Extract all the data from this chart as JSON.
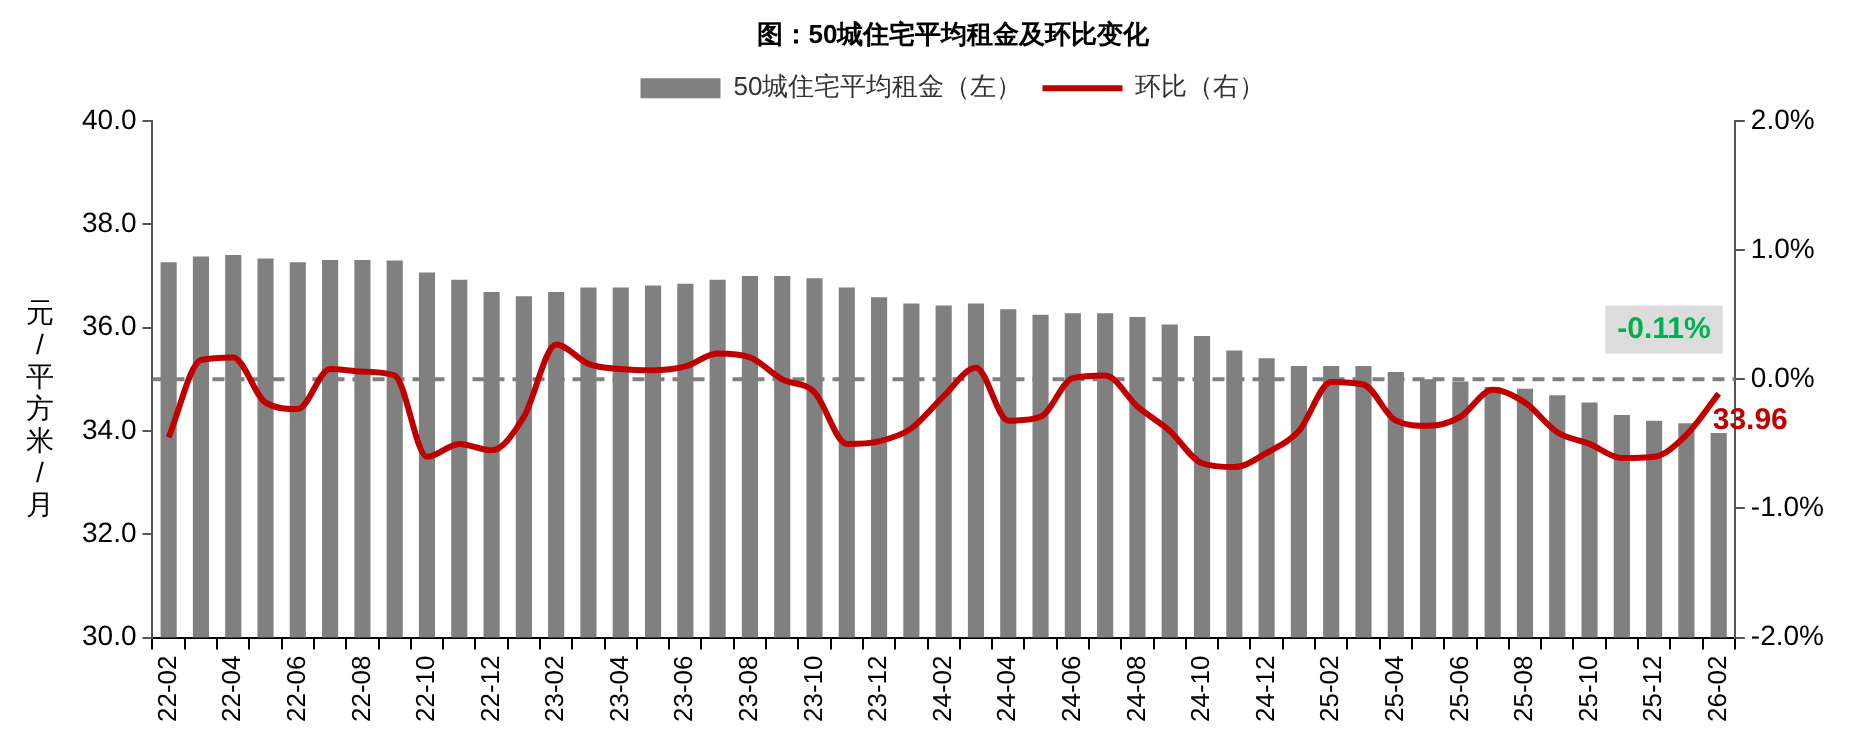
{
  "chart_data": {
    "type": "bar",
    "title": "图：50城住宅平均租金及环比变化",
    "ylabel": "元/平方米/月",
    "categories": [
      "22-02",
      null,
      "22-04",
      null,
      "22-06",
      null,
      "22-08",
      null,
      "22-10",
      null,
      "22-12",
      null,
      "23-02",
      null,
      "23-04",
      null,
      "23-06",
      null,
      "23-08",
      null,
      "23-10",
      null,
      "23-12",
      null,
      "24-02",
      null,
      "24-04",
      null,
      "24-06",
      null,
      "24-08",
      null,
      "24-10",
      null,
      "24-12",
      null,
      "25-02",
      null,
      "25-04",
      null,
      "25-06",
      null,
      "25-08",
      null,
      "25-10",
      null,
      "25-12",
      null,
      "26-02"
    ],
    "series": [
      {
        "name": "50城住宅平均租金（左）",
        "color": "#808080",
        "values": [
          37.27,
          37.38,
          37.41,
          37.34,
          37.27,
          37.31,
          37.31,
          37.3,
          37.07,
          36.93,
          36.69,
          36.61,
          36.69,
          36.78,
          36.78,
          36.82,
          36.85,
          36.93,
          37.0,
          37.0,
          36.96,
          36.78,
          36.59,
          36.47,
          36.43,
          36.47,
          36.36,
          36.25,
          36.28,
          36.28,
          36.21,
          36.06,
          35.84,
          35.56,
          35.41,
          35.26,
          35.26,
          35.26,
          35.14,
          35.0,
          34.96,
          34.85,
          34.82,
          34.69,
          34.55,
          34.31,
          34.2,
          34.15,
          33.96
        ],
        "value_labels": [
          null,
          null,
          null,
          null,
          null,
          null,
          null,
          null,
          null,
          null,
          null,
          null,
          null,
          null,
          null,
          null,
          null,
          null,
          null,
          null,
          null,
          null,
          null,
          null,
          null,
          null,
          null,
          null,
          null,
          null,
          null,
          null,
          null,
          null,
          null,
          null,
          null,
          null,
          null,
          null,
          null,
          null,
          null,
          null,
          null,
          null,
          null,
          null,
          "33.96"
        ]
      },
      {
        "name": "环比（右）",
        "type": "line",
        "axis": "y2",
        "color": "#c00000",
        "values": [
          -0.45,
          0.15,
          0.17,
          -0.18,
          -0.23,
          0.08,
          0.06,
          0.03,
          -0.6,
          -0.5,
          -0.55,
          -0.29,
          0.27,
          0.12,
          0.08,
          0.07,
          0.1,
          0.2,
          0.17,
          0.0,
          -0.1,
          -0.5,
          -0.48,
          -0.38,
          -0.13,
          0.09,
          -0.32,
          -0.29,
          0.01,
          0.03,
          -0.21,
          -0.4,
          -0.65,
          -0.68,
          -0.57,
          -0.4,
          -0.02,
          -0.04,
          -0.32,
          -0.36,
          -0.29,
          -0.08,
          -0.18,
          -0.41,
          -0.5,
          -0.61,
          -0.6,
          -0.43,
          -0.11
        ],
        "value_labels": [
          null,
          null,
          null,
          null,
          null,
          null,
          null,
          null,
          null,
          null,
          null,
          null,
          null,
          null,
          null,
          null,
          null,
          null,
          null,
          null,
          null,
          null,
          null,
          null,
          null,
          null,
          null,
          null,
          null,
          null,
          null,
          null,
          null,
          null,
          null,
          null,
          null,
          null,
          null,
          null,
          null,
          null,
          null,
          null,
          null,
          null,
          null,
          null,
          "-0.11%"
        ]
      }
    ],
    "ylim": [
      30,
      40
    ],
    "yticks": [
      {
        "value": 30,
        "label": "30.0"
      },
      {
        "value": 32,
        "label": "32.0"
      },
      {
        "value": 34,
        "label": "34.0"
      },
      {
        "value": 36,
        "label": "36.0"
      },
      {
        "value": 38,
        "label": "38.0"
      },
      {
        "value": 40,
        "label": "40.0"
      }
    ],
    "y2lim": [
      -2,
      2
    ],
    "y2ticks": [
      {
        "value": -2,
        "label": "-2.0%"
      },
      {
        "value": -1,
        "label": "-1.0%"
      },
      {
        "value": 0,
        "label": "0.0%"
      },
      {
        "value": 1,
        "label": "1.0%"
      },
      {
        "value": 2,
        "label": "2.0%"
      }
    ],
    "ref_lines": [
      {
        "axis": "y2",
        "value": 0,
        "color": "#808080",
        "line_style": "dashed"
      }
    ],
    "legend": "top",
    "grid": false
  }
}
